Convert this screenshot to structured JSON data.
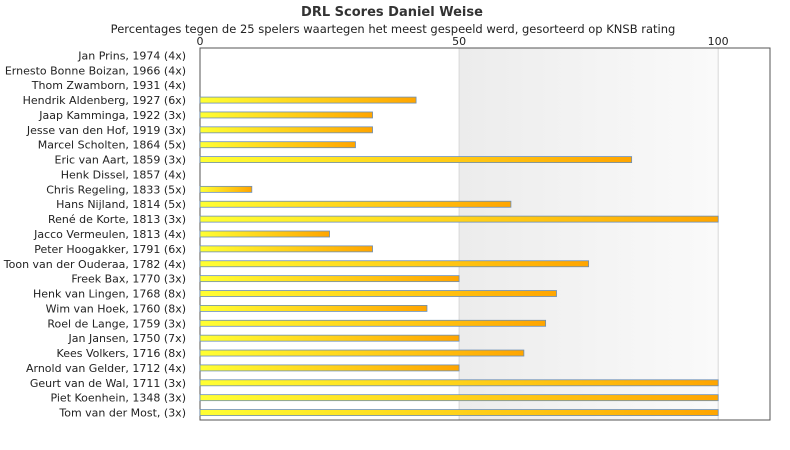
{
  "chart_data": {
    "type": "bar",
    "orientation": "horizontal",
    "title": "DRL Scores Daniel Weise",
    "subtitle": "Percentages tegen de 25 spelers waartegen het meest gespeeld werd, gesorteerd op KNSB rating",
    "categories": [
      "Jan Prins, 1974 (4x)",
      "Ernesto Bonne Boizan, 1966 (4x)",
      "Thom Zwamborn, 1931 (4x)",
      "Hendrik Aldenberg, 1927 (6x)",
      "Jaap Kamminga, 1922 (3x)",
      "Jesse van den Hof, 1919 (3x)",
      "Marcel Scholten, 1864 (5x)",
      "Eric van Aart, 1859 (3x)",
      "Henk Dissel, 1857 (4x)",
      "Chris Regeling, 1833 (5x)",
      "Hans Nijland, 1814 (5x)",
      "René de Korte, 1813 (3x)",
      "Jacco Vermeulen, 1813 (4x)",
      "Peter Hoogakker, 1791 (6x)",
      "Toon van der Ouderaa, 1782 (4x)",
      "Freek Bax, 1770 (3x)",
      "Henk van Lingen, 1768 (8x)",
      "Wim van Hoek, 1760 (8x)",
      "Roel de Lange, 1759 (3x)",
      "Jan Jansen, 1750 (7x)",
      "Kees Volkers, 1716 (8x)",
      "Arnold van Gelder, 1712 (4x)",
      "Geurt van de Wal, 1711 (3x)",
      "Piet Koenhein, 1348 (3x)",
      "Tom van der Most,  (3x)"
    ],
    "values": [
      0,
      0,
      0,
      41.7,
      33.3,
      33.3,
      30,
      83.3,
      0,
      10,
      60,
      100,
      25,
      33.3,
      75,
      50,
      68.8,
      43.8,
      66.7,
      50,
      62.5,
      50,
      100,
      100,
      100
    ],
    "xlim": [
      0,
      110
    ],
    "xticks": [
      0,
      50,
      100
    ],
    "grid": true,
    "legend": "none",
    "colors": {
      "bar_start": "#ffff33",
      "bar_end": "#ffa500",
      "bar_stroke": "#6b8fb8",
      "band": "#f0f0f0",
      "frame": "#555555"
    }
  }
}
